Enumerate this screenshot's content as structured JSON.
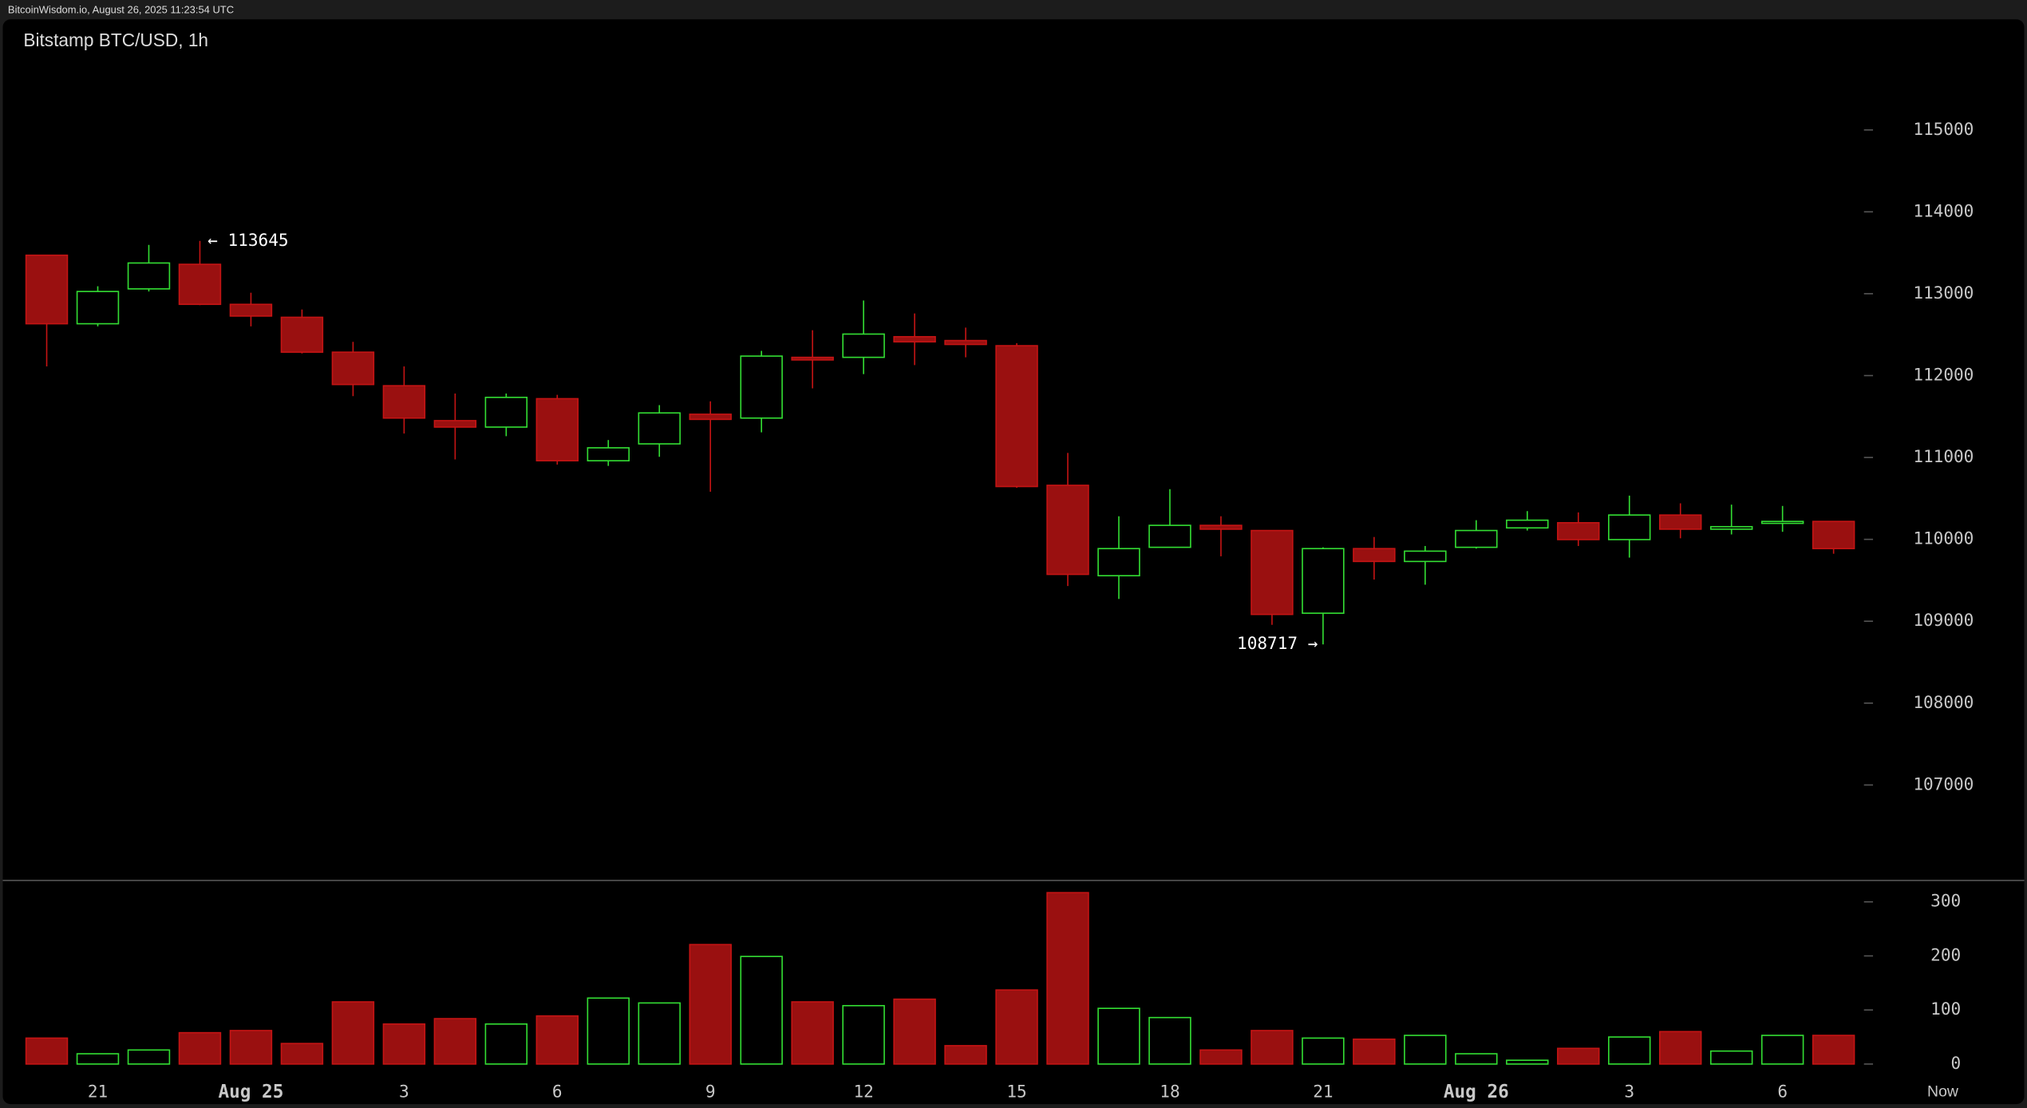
{
  "header": "BitcoinWisdom.io, August 26, 2025 11:23:54 UTC",
  "chart_data": {
    "type": "candlestick",
    "title": "Bitstamp BTC/USD, 1h",
    "categories": [
      null,
      "21",
      null,
      null,
      "Aug 25",
      null,
      null,
      "3",
      null,
      null,
      "6",
      null,
      null,
      "9",
      null,
      null,
      "12",
      null,
      null,
      "15",
      null,
      null,
      "18",
      null,
      null,
      "21",
      null,
      null,
      "Aug 26",
      null,
      null,
      "3",
      null,
      null,
      "6",
      null
    ],
    "x_end_label": "Now",
    "open": [
      113470,
      112633,
      113059,
      113359,
      112870,
      112712,
      112286,
      111876,
      111450,
      111371,
      111718,
      110960,
      111166,
      111528,
      111481,
      112223,
      112223,
      112475,
      112428,
      112365,
      110660,
      109556,
      109903,
      110171,
      110108,
      109098,
      109887,
      109730,
      109903,
      110140,
      110203,
      109997,
      110297,
      110124,
      110203,
      110219
    ],
    "high": [
      113470,
      113091,
      113596,
      113645,
      113012,
      112807,
      112412,
      112112,
      111781,
      111781,
      111765,
      111213,
      111639,
      111686,
      112302,
      112554,
      112917,
      112759,
      112586,
      112396,
      111055,
      110282,
      110613,
      110282,
      110108,
      109903,
      110029,
      109919,
      110234,
      110345,
      110329,
      110534,
      110440,
      110424,
      110408,
      110219
    ],
    "low": [
      112112,
      112601,
      113027,
      112860,
      112601,
      112270,
      111749,
      111292,
      110976,
      111260,
      110913,
      110897,
      111008,
      110582,
      111307,
      111844,
      112018,
      112128,
      112223,
      110629,
      109430,
      109272,
      109903,
      109793,
      108956,
      108717,
      109509,
      109446,
      109887,
      110108,
      109919,
      109777,
      110013,
      110060,
      110092,
      109824
    ],
    "close": [
      112633,
      113027,
      113375,
      112870,
      112727,
      112286,
      111891,
      111481,
      111371,
      111734,
      110960,
      111118,
      111544,
      111465,
      112238,
      112191,
      112507,
      112412,
      112380,
      110645,
      109572,
      109887,
      110171,
      110124,
      109083,
      109887,
      109730,
      109856,
      110108,
      110234,
      109997,
      110297,
      110124,
      110155,
      110219,
      109887
    ],
    "volume": [
      48,
      19,
      26,
      58,
      62,
      38,
      115,
      74,
      84,
      74,
      89,
      122,
      113,
      221,
      199,
      115,
      108,
      120,
      34,
      137,
      317,
      103,
      86,
      26,
      62,
      48,
      46,
      53,
      19,
      7,
      29,
      50,
      60,
      24,
      53,
      53
    ],
    "up_color": "#33dd33",
    "down_color": "#9a1010",
    "ylim": [
      105850,
      116350
    ],
    "yticks": [
      107000,
      108000,
      109000,
      110000,
      111000,
      112000,
      113000,
      114000,
      115000
    ],
    "volume_ylim": [
      0,
      330
    ],
    "volume_yticks": [
      0,
      100,
      200,
      300
    ],
    "annotations": [
      {
        "value": 113645,
        "label": "← 113645"
      },
      {
        "value": 108717,
        "label": "108717 →"
      }
    ]
  }
}
